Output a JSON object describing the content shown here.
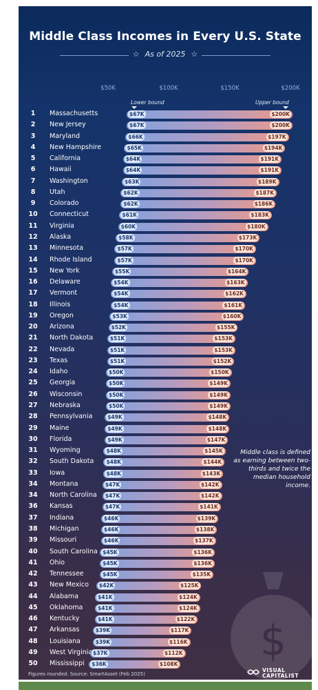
{
  "title": "Middle Class Incomes in Every U.S. State",
  "subtitle": "As of 2025",
  "subtitle_star": "☆",
  "colors": {
    "lower_bar": "#7fa3e0",
    "upper_bar": "#f09a84",
    "background_top": "#0b2a5c",
    "background_bottom": "#3f2f44"
  },
  "axis": {
    "ticks": [
      "$50K",
      "$100K",
      "$150K",
      "$200K"
    ],
    "tick_values": [
      50,
      100,
      150,
      200
    ]
  },
  "bound_labels": {
    "lower": "Lower bound",
    "upper": "Upper bound"
  },
  "note": "Middle class is defined as earning between two-thirds and twice the median household income.",
  "footer": "Figures rounded. Source: SmartAsset (Feb 2025)",
  "brand": {
    "line1": "VISUAL",
    "line2": "CAPITALIST"
  },
  "chart_data": {
    "type": "bar",
    "title": "Middle Class Incomes in Every U.S. State",
    "subtitle": "As of 2025",
    "xlim": [
      50,
      200
    ],
    "unit": "$K",
    "rows": [
      {
        "rank": "1",
        "state": "Massachusetts",
        "lower": 67,
        "upper": 200,
        "lower_label": "$67K",
        "upper_label": "$200K"
      },
      {
        "rank": "2",
        "state": "New Jersey",
        "lower": 67,
        "upper": 200,
        "lower_label": "$67K",
        "upper_label": "$200K"
      },
      {
        "rank": "3",
        "state": "Maryland",
        "lower": 66,
        "upper": 197,
        "lower_label": "$66K",
        "upper_label": "$197K"
      },
      {
        "rank": "4",
        "state": "New Hampshire",
        "lower": 65,
        "upper": 194,
        "lower_label": "$65K",
        "upper_label": "$194K"
      },
      {
        "rank": "5",
        "state": "California",
        "lower": 64,
        "upper": 191,
        "lower_label": "$64K",
        "upper_label": "$191K"
      },
      {
        "rank": "6",
        "state": "Hawaii",
        "lower": 64,
        "upper": 191,
        "lower_label": "$64K",
        "upper_label": "$191K"
      },
      {
        "rank": "7",
        "state": "Washington",
        "lower": 63,
        "upper": 189,
        "lower_label": "$63K",
        "upper_label": "$189K"
      },
      {
        "rank": "8",
        "state": "Utah",
        "lower": 62,
        "upper": 187,
        "lower_label": "$62K",
        "upper_label": "$187K"
      },
      {
        "rank": "9",
        "state": "Colorado",
        "lower": 62,
        "upper": 186,
        "lower_label": "$62K",
        "upper_label": "$186K"
      },
      {
        "rank": "10",
        "state": "Connecticut",
        "lower": 61,
        "upper": 183,
        "lower_label": "$61K",
        "upper_label": "$183K"
      },
      {
        "rank": "11",
        "state": "Virginia",
        "lower": 60,
        "upper": 180,
        "lower_label": "$60K",
        "upper_label": "$180K"
      },
      {
        "rank": "12",
        "state": "Alaska",
        "lower": 58,
        "upper": 173,
        "lower_label": "$58K",
        "upper_label": "$173K"
      },
      {
        "rank": "13",
        "state": "Minnesota",
        "lower": 57,
        "upper": 170,
        "lower_label": "$57K",
        "upper_label": "$170K"
      },
      {
        "rank": "14",
        "state": "Rhode Island",
        "lower": 57,
        "upper": 170,
        "lower_label": "$57K",
        "upper_label": "$170K"
      },
      {
        "rank": "15",
        "state": "New York",
        "lower": 55,
        "upper": 164,
        "lower_label": "$55K",
        "upper_label": "$164K"
      },
      {
        "rank": "16",
        "state": "Delaware",
        "lower": 54,
        "upper": 163,
        "lower_label": "$54K",
        "upper_label": "$163K"
      },
      {
        "rank": "17",
        "state": "Vermont",
        "lower": 54,
        "upper": 162,
        "lower_label": "$54K",
        "upper_label": "$162K"
      },
      {
        "rank": "18",
        "state": "Illinois",
        "lower": 54,
        "upper": 161,
        "lower_label": "$54K",
        "upper_label": "$161K"
      },
      {
        "rank": "19",
        "state": "Oregon",
        "lower": 53,
        "upper": 160,
        "lower_label": "$53K",
        "upper_label": "$160K"
      },
      {
        "rank": "20",
        "state": "Arizona",
        "lower": 52,
        "upper": 155,
        "lower_label": "$52K",
        "upper_label": "$155K"
      },
      {
        "rank": "21",
        "state": "North Dakota",
        "lower": 51,
        "upper": 153,
        "lower_label": "$51K",
        "upper_label": "$153K"
      },
      {
        "rank": "22",
        "state": "Nevada",
        "lower": 51,
        "upper": 153,
        "lower_label": "$51K",
        "upper_label": "$153K"
      },
      {
        "rank": "23",
        "state": "Texas",
        "lower": 51,
        "upper": 152,
        "lower_label": "$51K",
        "upper_label": "$152K"
      },
      {
        "rank": "24",
        "state": "Idaho",
        "lower": 50,
        "upper": 150,
        "lower_label": "$50K",
        "upper_label": "$150K"
      },
      {
        "rank": "25",
        "state": "Georgia",
        "lower": 50,
        "upper": 149,
        "lower_label": "$50K",
        "upper_label": "$149K"
      },
      {
        "rank": "26",
        "state": "Wisconsin",
        "lower": 50,
        "upper": 149,
        "lower_label": "$50K",
        "upper_label": "$149K"
      },
      {
        "rank": "27",
        "state": "Nebraska",
        "lower": 50,
        "upper": 149,
        "lower_label": "$50K",
        "upper_label": "$149K"
      },
      {
        "rank": "28",
        "state": "Pennsylvania",
        "lower": 49,
        "upper": 148,
        "lower_label": "$49K",
        "upper_label": "$148K"
      },
      {
        "rank": "29",
        "state": "Maine",
        "lower": 49,
        "upper": 148,
        "lower_label": "$49K",
        "upper_label": "$148K"
      },
      {
        "rank": "30",
        "state": "Florida",
        "lower": 49,
        "upper": 147,
        "lower_label": "$49K",
        "upper_label": "$147K"
      },
      {
        "rank": "31",
        "state": "Wyoming",
        "lower": 48,
        "upper": 145,
        "lower_label": "$48K",
        "upper_label": "$145K"
      },
      {
        "rank": "32",
        "state": "South Dakota",
        "lower": 48,
        "upper": 144,
        "lower_label": "$48K",
        "upper_label": "$144K"
      },
      {
        "rank": "33",
        "state": "Iowa",
        "lower": 48,
        "upper": 143,
        "lower_label": "$48K",
        "upper_label": "$143K"
      },
      {
        "rank": "34",
        "state": "Montana",
        "lower": 47,
        "upper": 142,
        "lower_label": "$47K",
        "upper_label": "$142K"
      },
      {
        "rank": "34",
        "state": "North Carolina",
        "lower": 47,
        "upper": 142,
        "lower_label": "$47K",
        "upper_label": "$142K"
      },
      {
        "rank": "36",
        "state": "Kansas",
        "lower": 47,
        "upper": 141,
        "lower_label": "$47K",
        "upper_label": "$141K"
      },
      {
        "rank": "37",
        "state": "Indiana",
        "lower": 46,
        "upper": 139,
        "lower_label": "$46K",
        "upper_label": "$139K"
      },
      {
        "rank": "38",
        "state": "Michigan",
        "lower": 46,
        "upper": 138,
        "lower_label": "$46K",
        "upper_label": "$138K"
      },
      {
        "rank": "39",
        "state": "Missouri",
        "lower": 46,
        "upper": 137,
        "lower_label": "$46K",
        "upper_label": "$137K"
      },
      {
        "rank": "40",
        "state": "South Carolina",
        "lower": 45,
        "upper": 136,
        "lower_label": "$45K",
        "upper_label": "$136K"
      },
      {
        "rank": "41",
        "state": "Ohio",
        "lower": 45,
        "upper": 136,
        "lower_label": "$45K",
        "upper_label": "$136K"
      },
      {
        "rank": "42",
        "state": "Tennessee",
        "lower": 45,
        "upper": 135,
        "lower_label": "$45K",
        "upper_label": "$135K"
      },
      {
        "rank": "43",
        "state": "New Mexico",
        "lower": 42,
        "upper": 125,
        "lower_label": "$42K",
        "upper_label": "$125K"
      },
      {
        "rank": "44",
        "state": "Alabama",
        "lower": 41,
        "upper": 124,
        "lower_label": "$41K",
        "upper_label": "$124K"
      },
      {
        "rank": "45",
        "state": "Oklahoma",
        "lower": 41,
        "upper": 124,
        "lower_label": "$41K",
        "upper_label": "$124K"
      },
      {
        "rank": "46",
        "state": "Kentucky",
        "lower": 41,
        "upper": 122,
        "lower_label": "$41K",
        "upper_label": "$122K"
      },
      {
        "rank": "47",
        "state": "Arkansas",
        "lower": 39,
        "upper": 117,
        "lower_label": "$39K",
        "upper_label": "$117K"
      },
      {
        "rank": "48",
        "state": "Louisiana",
        "lower": 39,
        "upper": 116,
        "lower_label": "$39K",
        "upper_label": "$116K"
      },
      {
        "rank": "49",
        "state": "West Virginia",
        "lower": 37,
        "upper": 112,
        "lower_label": "$37K",
        "upper_label": "$112K"
      },
      {
        "rank": "50",
        "state": "Mississippi",
        "lower": 36,
        "upper": 108,
        "lower_label": "$36K",
        "upper_label": "$108K"
      }
    ]
  }
}
